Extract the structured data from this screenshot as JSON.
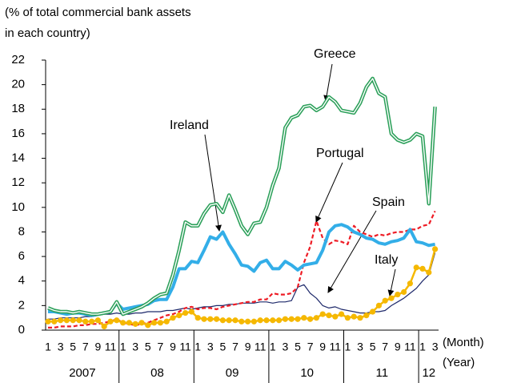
{
  "chart_data": {
    "type": "line",
    "ylabel": "(% of total commercial bank assets\nin each country)",
    "xlabel_month": "(Month)",
    "xlabel_year": "(Year)",
    "categories": [
      "1",
      null,
      "3",
      null,
      "5",
      null,
      "7",
      null,
      "9",
      null,
      "11",
      null,
      "1",
      null,
      "3",
      null,
      "5",
      null,
      "7",
      null,
      "9",
      null,
      "11",
      null,
      "1",
      null,
      "3",
      null,
      "5",
      null,
      "7",
      null,
      "9",
      null,
      "11",
      null,
      "1",
      null,
      "3",
      null,
      "5",
      null,
      "7",
      null,
      "9",
      null,
      "11",
      null,
      "1",
      null,
      "3",
      null,
      "5",
      null,
      "7",
      null,
      "9",
      null,
      "11",
      null,
      "1",
      null,
      "3"
    ],
    "years": [
      "2007",
      "08",
      "09",
      "10",
      "11",
      "12"
    ],
    "ylim": [
      0,
      22
    ],
    "yticks": [
      0,
      2,
      4,
      6,
      8,
      10,
      12,
      14,
      16,
      18,
      20,
      22
    ],
    "grid": false,
    "series": [
      {
        "name": "Greece",
        "color": "#2ca05a",
        "style": "double",
        "values": [
          1.8,
          1.6,
          1.5,
          1.5,
          1.4,
          1.5,
          1.4,
          1.3,
          1.3,
          1.4,
          1.5,
          2.3,
          1.3,
          1.5,
          1.7,
          1.9,
          2.2,
          2.6,
          2.9,
          3.0,
          4.5,
          6.5,
          8.8,
          8.5,
          8.5,
          9.5,
          10.2,
          10.3,
          9.6,
          11.0,
          9.8,
          8.5,
          7.8,
          8.7,
          8.8,
          10.0,
          11.8,
          13.2,
          16.5,
          17.3,
          17.5,
          18.2,
          18.3,
          17.9,
          18.2,
          19.0,
          18.6,
          17.9,
          17.8,
          17.7,
          18.5,
          19.8,
          20.5,
          19.3,
          19.0,
          16.0,
          15.5,
          15.3,
          15.5,
          16.0,
          15.8,
          10.3,
          18.2
        ]
      },
      {
        "name": "Ireland",
        "color": "#33aee8",
        "style": "thick",
        "values": [
          1.5,
          1.5,
          1.4,
          1.3,
          1.4,
          1.4,
          1.3,
          1.2,
          1.3,
          1.4,
          1.5,
          2.2,
          1.7,
          1.8,
          1.9,
          2.0,
          2.1,
          2.4,
          2.5,
          2.5,
          3.5,
          5.0,
          5.0,
          5.6,
          5.5,
          6.5,
          7.6,
          7.4,
          8.0,
          7.0,
          6.2,
          5.3,
          5.2,
          4.8,
          5.5,
          5.7,
          5.0,
          5.0,
          5.6,
          5.3,
          4.9,
          5.3,
          5.4,
          5.5,
          6.5,
          8.0,
          8.5,
          8.6,
          8.4,
          8.0,
          7.8,
          7.5,
          7.4,
          7.1,
          7.0,
          7.2,
          7.3,
          7.5,
          8.2,
          7.2,
          7.1,
          6.9,
          7.0
        ]
      },
      {
        "name": "Portugal",
        "color": "#ee1c25",
        "style": "dashed",
        "values": [
          0.2,
          0.2,
          0.3,
          0.3,
          0.3,
          0.4,
          0.4,
          0.5,
          0.5,
          0.6,
          0.7,
          0.9,
          0.6,
          0.5,
          0.4,
          0.5,
          0.6,
          0.8,
          1.0,
          1.2,
          1.3,
          1.5,
          1.8,
          1.9,
          1.7,
          1.8,
          1.8,
          1.7,
          1.9,
          2.0,
          2.1,
          2.2,
          2.3,
          2.3,
          2.5,
          2.5,
          3.0,
          2.9,
          2.9,
          3.0,
          3.5,
          5.5,
          6.8,
          8.9,
          7.5,
          7.0,
          7.3,
          7.2,
          7.0,
          8.5,
          8.0,
          7.8,
          7.6,
          7.8,
          7.7,
          7.9,
          8.0,
          8.0,
          8.2,
          8.2,
          8.5,
          8.6,
          9.7
        ]
      },
      {
        "name": "Spain",
        "color": "#1f2a6b",
        "style": "thin",
        "values": [
          0.9,
          0.9,
          1.0,
          1.0,
          1.0,
          1.0,
          1.1,
          1.1,
          1.2,
          1.3,
          1.3,
          1.4,
          1.3,
          1.3,
          1.4,
          1.4,
          1.5,
          1.5,
          1.5,
          1.6,
          1.6,
          1.7,
          1.8,
          1.7,
          1.8,
          1.9,
          1.9,
          2.0,
          2.0,
          2.1,
          2.1,
          2.2,
          2.2,
          2.2,
          2.3,
          2.3,
          2.2,
          2.3,
          2.3,
          2.4,
          3.5,
          3.7,
          3.0,
          2.6,
          2.0,
          1.8,
          1.9,
          1.7,
          1.6,
          1.5,
          1.4,
          1.4,
          1.5,
          1.5,
          1.6,
          2.0,
          2.3,
          2.6,
          3.0,
          3.4,
          4.0,
          4.5,
          6.3
        ]
      },
      {
        "name": "Italy",
        "color": "#f5b800",
        "style": "dots",
        "values": [
          0.7,
          0.7,
          0.8,
          0.8,
          0.8,
          0.8,
          0.7,
          0.7,
          0.8,
          0.3,
          0.7,
          0.8,
          0.6,
          0.6,
          0.5,
          0.6,
          0.4,
          0.6,
          0.6,
          0.7,
          1.0,
          1.2,
          1.4,
          1.5,
          1.0,
          0.9,
          0.9,
          0.9,
          0.8,
          0.8,
          0.8,
          0.7,
          0.7,
          0.7,
          0.8,
          0.8,
          0.8,
          0.8,
          0.9,
          0.9,
          0.9,
          1.0,
          0.9,
          1.0,
          1.3,
          1.2,
          1.1,
          1.3,
          1.0,
          1.1,
          1.0,
          1.2,
          1.5,
          2.0,
          2.4,
          2.6,
          2.9,
          3.1,
          3.8,
          5.1,
          5.0,
          4.7,
          6.6
        ]
      }
    ]
  }
}
